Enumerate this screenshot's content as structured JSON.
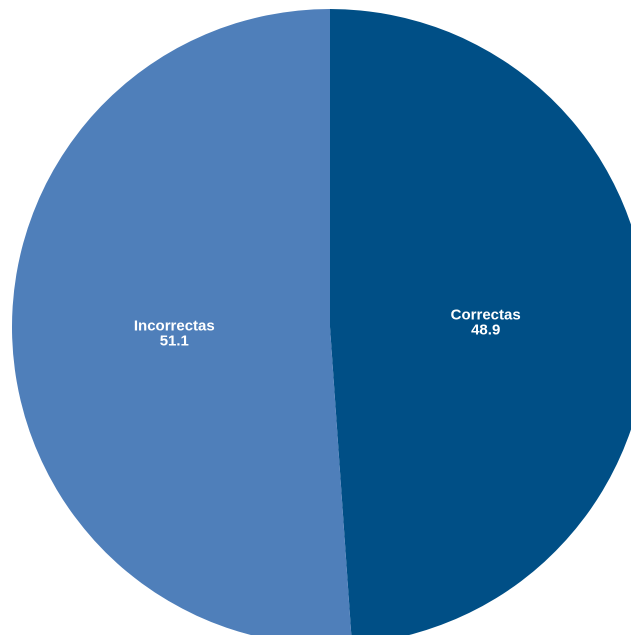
{
  "chart_data": {
    "type": "pie",
    "categories": [
      "Correctas",
      "Incorrectas"
    ],
    "values": [
      48.9,
      51.1
    ],
    "value_labels": [
      "48.9",
      "51.1"
    ],
    "colors": [
      "#004f86",
      "#4f7fba"
    ],
    "start": "12 o'clock",
    "direction": "clockwise",
    "legend": "none",
    "title": ""
  }
}
